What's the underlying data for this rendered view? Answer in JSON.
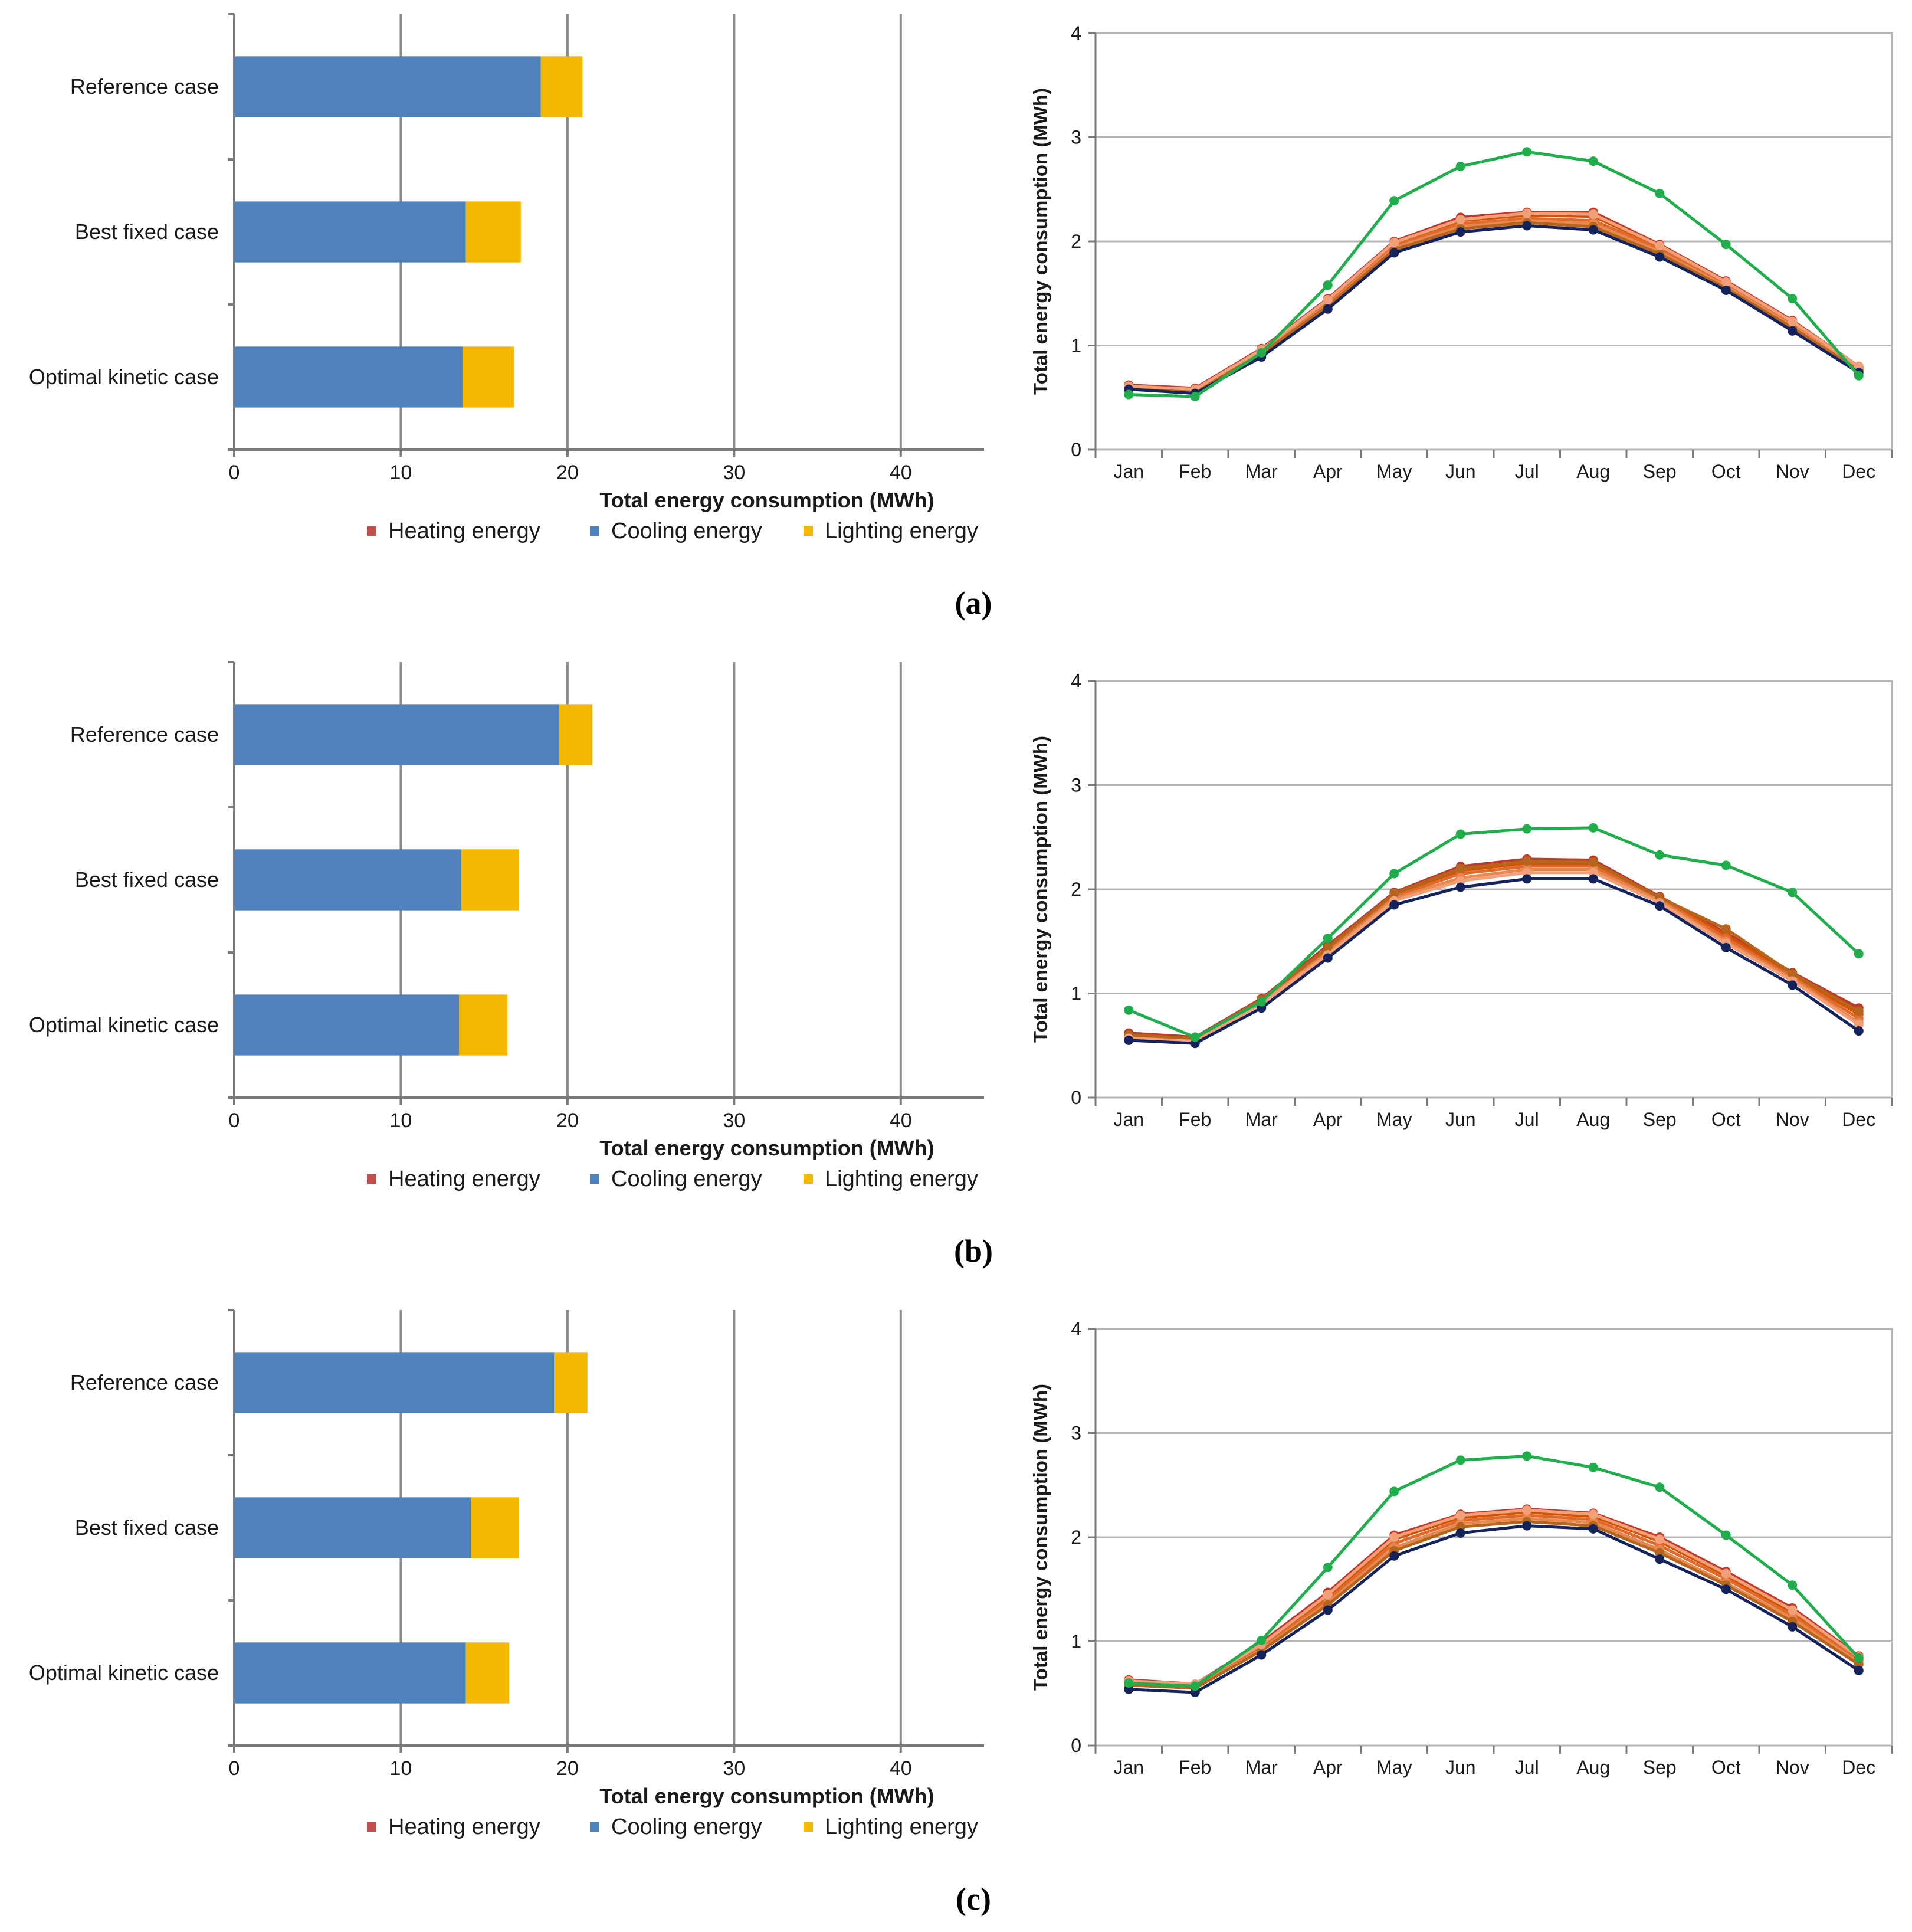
{
  "colors": {
    "heating": "#c0504d",
    "cooling": "#4f81bd",
    "lighting": "#f5b800",
    "green": "#1fae4b",
    "navy": "#14235c",
    "orange_series": [
      "#c0392b",
      "#d35400",
      "#e06a2c",
      "#e8874e",
      "#b5651d",
      "#f1a07a",
      "#a0522d",
      "#cc4a1f"
    ]
  },
  "legend": {
    "heating": "Heating energy",
    "cooling": "Cooling energy",
    "lighting": "Lighting energy"
  },
  "bar_xlabel": "Total energy consumption (MWh)",
  "line_ylabel": "Total energy consumption (MWh)",
  "chart_data": [
    {
      "panel": "(a)",
      "type": "bar",
      "orientation": "horizontal",
      "stacked": true,
      "categories": [
        "Reference case",
        "Best fixed case",
        "Optimal kinetic case"
      ],
      "series": [
        {
          "name": "Heating energy",
          "values": [
            0.0,
            0.0,
            0.0
          ]
        },
        {
          "name": "Cooling energy",
          "values": [
            18.4,
            13.9,
            13.7
          ]
        },
        {
          "name": "Lighting energy",
          "values": [
            2.5,
            3.3,
            3.1
          ]
        }
      ],
      "xlabel": "Total energy consumption (MWh)",
      "xticks": [
        0,
        10,
        20,
        30,
        40
      ],
      "xlim": [
        0,
        45
      ],
      "grid": true,
      "legend": "bottom"
    },
    {
      "panel": "(a)",
      "type": "line",
      "categories": [
        "Jan",
        "Feb",
        "Mar",
        "Apr",
        "May",
        "Jun",
        "Jul",
        "Aug",
        "Sep",
        "Oct",
        "Nov",
        "Dec"
      ],
      "ylabel": "Total energy consumption (MWh)",
      "ylim": [
        0,
        4
      ],
      "yticks": [
        0,
        1,
        2,
        3,
        4
      ],
      "grid": true,
      "series": [
        {
          "color": "green",
          "values": [
            0.53,
            0.51,
            0.93,
            1.58,
            2.39,
            2.72,
            2.86,
            2.77,
            2.46,
            1.97,
            1.45,
            0.71
          ]
        },
        {
          "color": "navy",
          "values": [
            0.58,
            0.54,
            0.89,
            1.35,
            1.89,
            2.09,
            2.15,
            2.11,
            1.85,
            1.53,
            1.14,
            0.74
          ]
        },
        {
          "color": "orange",
          "values": [
            0.62,
            0.59,
            0.97,
            1.45,
            2.0,
            2.23,
            2.28,
            2.28,
            1.97,
            1.62,
            1.24,
            0.8
          ]
        },
        {
          "color": "orange",
          "values": [
            0.61,
            0.58,
            0.95,
            1.43,
            1.98,
            2.2,
            2.25,
            2.24,
            1.95,
            1.6,
            1.22,
            0.79
          ]
        },
        {
          "color": "orange",
          "values": [
            0.6,
            0.57,
            0.94,
            1.41,
            1.96,
            2.17,
            2.22,
            2.2,
            1.93,
            1.58,
            1.2,
            0.78
          ]
        },
        {
          "color": "orange",
          "values": [
            0.6,
            0.56,
            0.93,
            1.39,
            1.94,
            2.14,
            2.2,
            2.17,
            1.9,
            1.57,
            1.19,
            0.77
          ]
        },
        {
          "color": "orange",
          "values": [
            0.59,
            0.56,
            0.92,
            1.38,
            1.92,
            2.12,
            2.18,
            2.14,
            1.88,
            1.55,
            1.17,
            0.76
          ]
        },
        {
          "color": "orange",
          "values": [
            0.61,
            0.58,
            0.96,
            1.44,
            1.99,
            2.21,
            2.27,
            2.26,
            1.96,
            1.61,
            1.23,
            0.8
          ]
        }
      ]
    },
    {
      "panel": "(b)",
      "type": "bar",
      "orientation": "horizontal",
      "stacked": true,
      "categories": [
        "Reference case",
        "Best fixed case",
        "Optimal kinetic case"
      ],
      "series": [
        {
          "name": "Heating energy",
          "values": [
            0.0,
            0.0,
            0.0
          ]
        },
        {
          "name": "Cooling energy",
          "values": [
            19.5,
            13.6,
            13.5
          ]
        },
        {
          "name": "Lighting energy",
          "values": [
            2.0,
            3.5,
            2.9
          ]
        }
      ],
      "xlabel": "Total energy consumption (MWh)",
      "xticks": [
        0,
        10,
        20,
        30,
        40
      ],
      "xlim": [
        0,
        45
      ],
      "grid": true,
      "legend": "bottom"
    },
    {
      "panel": "(b)",
      "type": "line",
      "categories": [
        "Jan",
        "Feb",
        "Mar",
        "Apr",
        "May",
        "Jun",
        "Jul",
        "Aug",
        "Sep",
        "Oct",
        "Nov",
        "Dec"
      ],
      "ylabel": "Total energy consumption (MWh)",
      "ylim": [
        0,
        4
      ],
      "yticks": [
        0,
        1,
        2,
        3,
        4
      ],
      "grid": true,
      "series": [
        {
          "color": "green",
          "values": [
            0.84,
            0.58,
            0.92,
            1.53,
            2.15,
            2.53,
            2.58,
            2.59,
            2.33,
            2.23,
            1.97,
            1.38
          ]
        },
        {
          "color": "navy",
          "values": [
            0.55,
            0.52,
            0.86,
            1.34,
            1.85,
            2.02,
            2.1,
            2.1,
            1.84,
            1.44,
            1.08,
            0.64
          ]
        },
        {
          "color": "orange",
          "values": [
            0.62,
            0.58,
            0.95,
            1.46,
            1.97,
            2.22,
            2.29,
            2.28,
            1.93,
            1.58,
            1.2,
            0.86
          ]
        },
        {
          "color": "orange",
          "values": [
            0.6,
            0.57,
            0.93,
            1.43,
            1.95,
            2.18,
            2.25,
            2.25,
            1.92,
            1.56,
            1.18,
            0.8
          ]
        },
        {
          "color": "orange",
          "values": [
            0.59,
            0.56,
            0.92,
            1.41,
            1.93,
            2.15,
            2.22,
            2.22,
            1.91,
            1.53,
            1.16,
            0.76
          ]
        },
        {
          "color": "orange",
          "values": [
            0.58,
            0.55,
            0.91,
            1.39,
            1.91,
            2.11,
            2.19,
            2.19,
            1.89,
            1.5,
            1.14,
            0.72
          ]
        },
        {
          "color": "orange",
          "values": [
            0.6,
            0.57,
            0.94,
            1.44,
            1.96,
            2.2,
            2.27,
            2.26,
            1.92,
            1.62,
            1.19,
            0.83
          ]
        },
        {
          "color": "orange",
          "values": [
            0.57,
            0.54,
            0.9,
            1.37,
            1.89,
            2.08,
            2.16,
            2.16,
            1.87,
            1.48,
            1.12,
            0.7
          ]
        }
      ]
    },
    {
      "panel": "(c)",
      "type": "bar",
      "orientation": "horizontal",
      "stacked": true,
      "categories": [
        "Reference case",
        "Best fixed case",
        "Optimal kinetic case"
      ],
      "series": [
        {
          "name": "Heating energy",
          "values": [
            0.0,
            0.0,
            0.0
          ]
        },
        {
          "name": "Cooling energy",
          "values": [
            19.2,
            14.2,
            13.9
          ]
        },
        {
          "name": "Lighting energy",
          "values": [
            2.0,
            2.9,
            2.6
          ]
        }
      ],
      "xlabel": "Total energy consumption (MWh)",
      "xticks": [
        0,
        10,
        20,
        30,
        40
      ],
      "xlim": [
        0,
        45
      ],
      "grid": true,
      "legend": "bottom"
    },
    {
      "panel": "(c)",
      "type": "line",
      "categories": [
        "Jan",
        "Feb",
        "Mar",
        "Apr",
        "May",
        "Jun",
        "Jul",
        "Aug",
        "Sep",
        "Oct",
        "Nov",
        "Dec"
      ],
      "ylabel": "Total energy consumption (MWh)",
      "ylim": [
        0,
        4
      ],
      "yticks": [
        0,
        1,
        2,
        3,
        4
      ],
      "grid": true,
      "series": [
        {
          "color": "green",
          "values": [
            0.6,
            0.57,
            1.01,
            1.71,
            2.44,
            2.74,
            2.78,
            2.67,
            2.48,
            2.02,
            1.54,
            0.84
          ]
        },
        {
          "color": "navy",
          "values": [
            0.54,
            0.51,
            0.87,
            1.3,
            1.82,
            2.04,
            2.11,
            2.08,
            1.79,
            1.5,
            1.14,
            0.72
          ]
        },
        {
          "color": "orange",
          "values": [
            0.63,
            0.59,
            0.99,
            1.47,
            2.02,
            2.22,
            2.27,
            2.23,
            2.0,
            1.67,
            1.32,
            0.86
          ]
        },
        {
          "color": "orange",
          "values": [
            0.61,
            0.58,
            0.96,
            1.43,
            1.98,
            2.19,
            2.24,
            2.2,
            1.96,
            1.63,
            1.28,
            0.84
          ]
        },
        {
          "color": "orange",
          "values": [
            0.6,
            0.57,
            0.94,
            1.4,
            1.94,
            2.16,
            2.21,
            2.17,
            1.92,
            1.6,
            1.25,
            0.82
          ]
        },
        {
          "color": "orange",
          "values": [
            0.59,
            0.56,
            0.92,
            1.37,
            1.9,
            2.13,
            2.18,
            2.14,
            1.88,
            1.56,
            1.22,
            0.8
          ]
        },
        {
          "color": "orange",
          "values": [
            0.58,
            0.55,
            0.91,
            1.35,
            1.87,
            2.1,
            2.15,
            2.11,
            1.85,
            1.54,
            1.19,
            0.78
          ]
        },
        {
          "color": "orange",
          "values": [
            0.62,
            0.59,
            0.97,
            1.45,
            2.0,
            2.21,
            2.26,
            2.22,
            1.98,
            1.65,
            1.3,
            0.85
          ]
        }
      ]
    }
  ]
}
